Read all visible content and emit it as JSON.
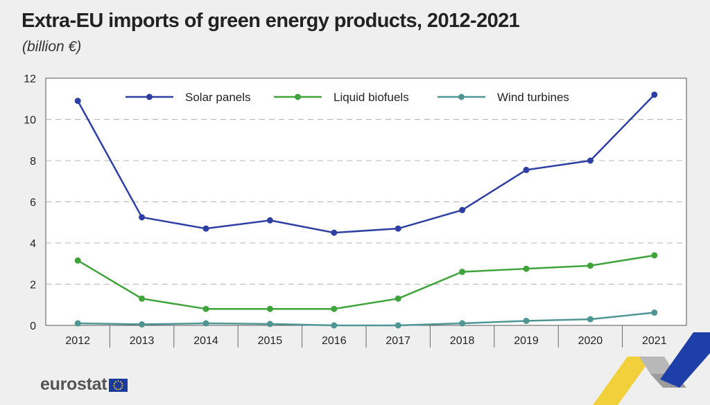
{
  "header": {
    "title": "Extra-EU imports of green energy products, 2012-2021",
    "subtitle": "(billion €)"
  },
  "brand": {
    "name": "eurostat",
    "logo_icon": "eu-flag-icon"
  },
  "chart_data": {
    "type": "line",
    "x": [
      "2012",
      "2013",
      "2014",
      "2015",
      "2016",
      "2017",
      "2018",
      "2019",
      "2020",
      "2021"
    ],
    "ylim": [
      0,
      12
    ],
    "yticks": [
      0,
      2,
      4,
      6,
      8,
      10,
      12
    ],
    "grid": true,
    "legend_position": "top",
    "series": [
      {
        "name": "Solar panels",
        "color": "#2e3fa3",
        "values": [
          10.9,
          5.25,
          4.7,
          5.1,
          4.5,
          4.7,
          5.6,
          7.55,
          8.0,
          11.2
        ]
      },
      {
        "name": "Liquid biofuels",
        "color": "#3ea33a",
        "values": [
          3.15,
          1.3,
          0.8,
          0.8,
          0.8,
          1.3,
          2.6,
          2.75,
          2.9,
          3.4
        ]
      },
      {
        "name": "Wind turbines",
        "color": "#4e9593",
        "values": [
          0.1,
          0.05,
          0.1,
          0.07,
          0.0,
          0.0,
          0.1,
          0.22,
          0.3,
          0.62
        ]
      }
    ]
  }
}
